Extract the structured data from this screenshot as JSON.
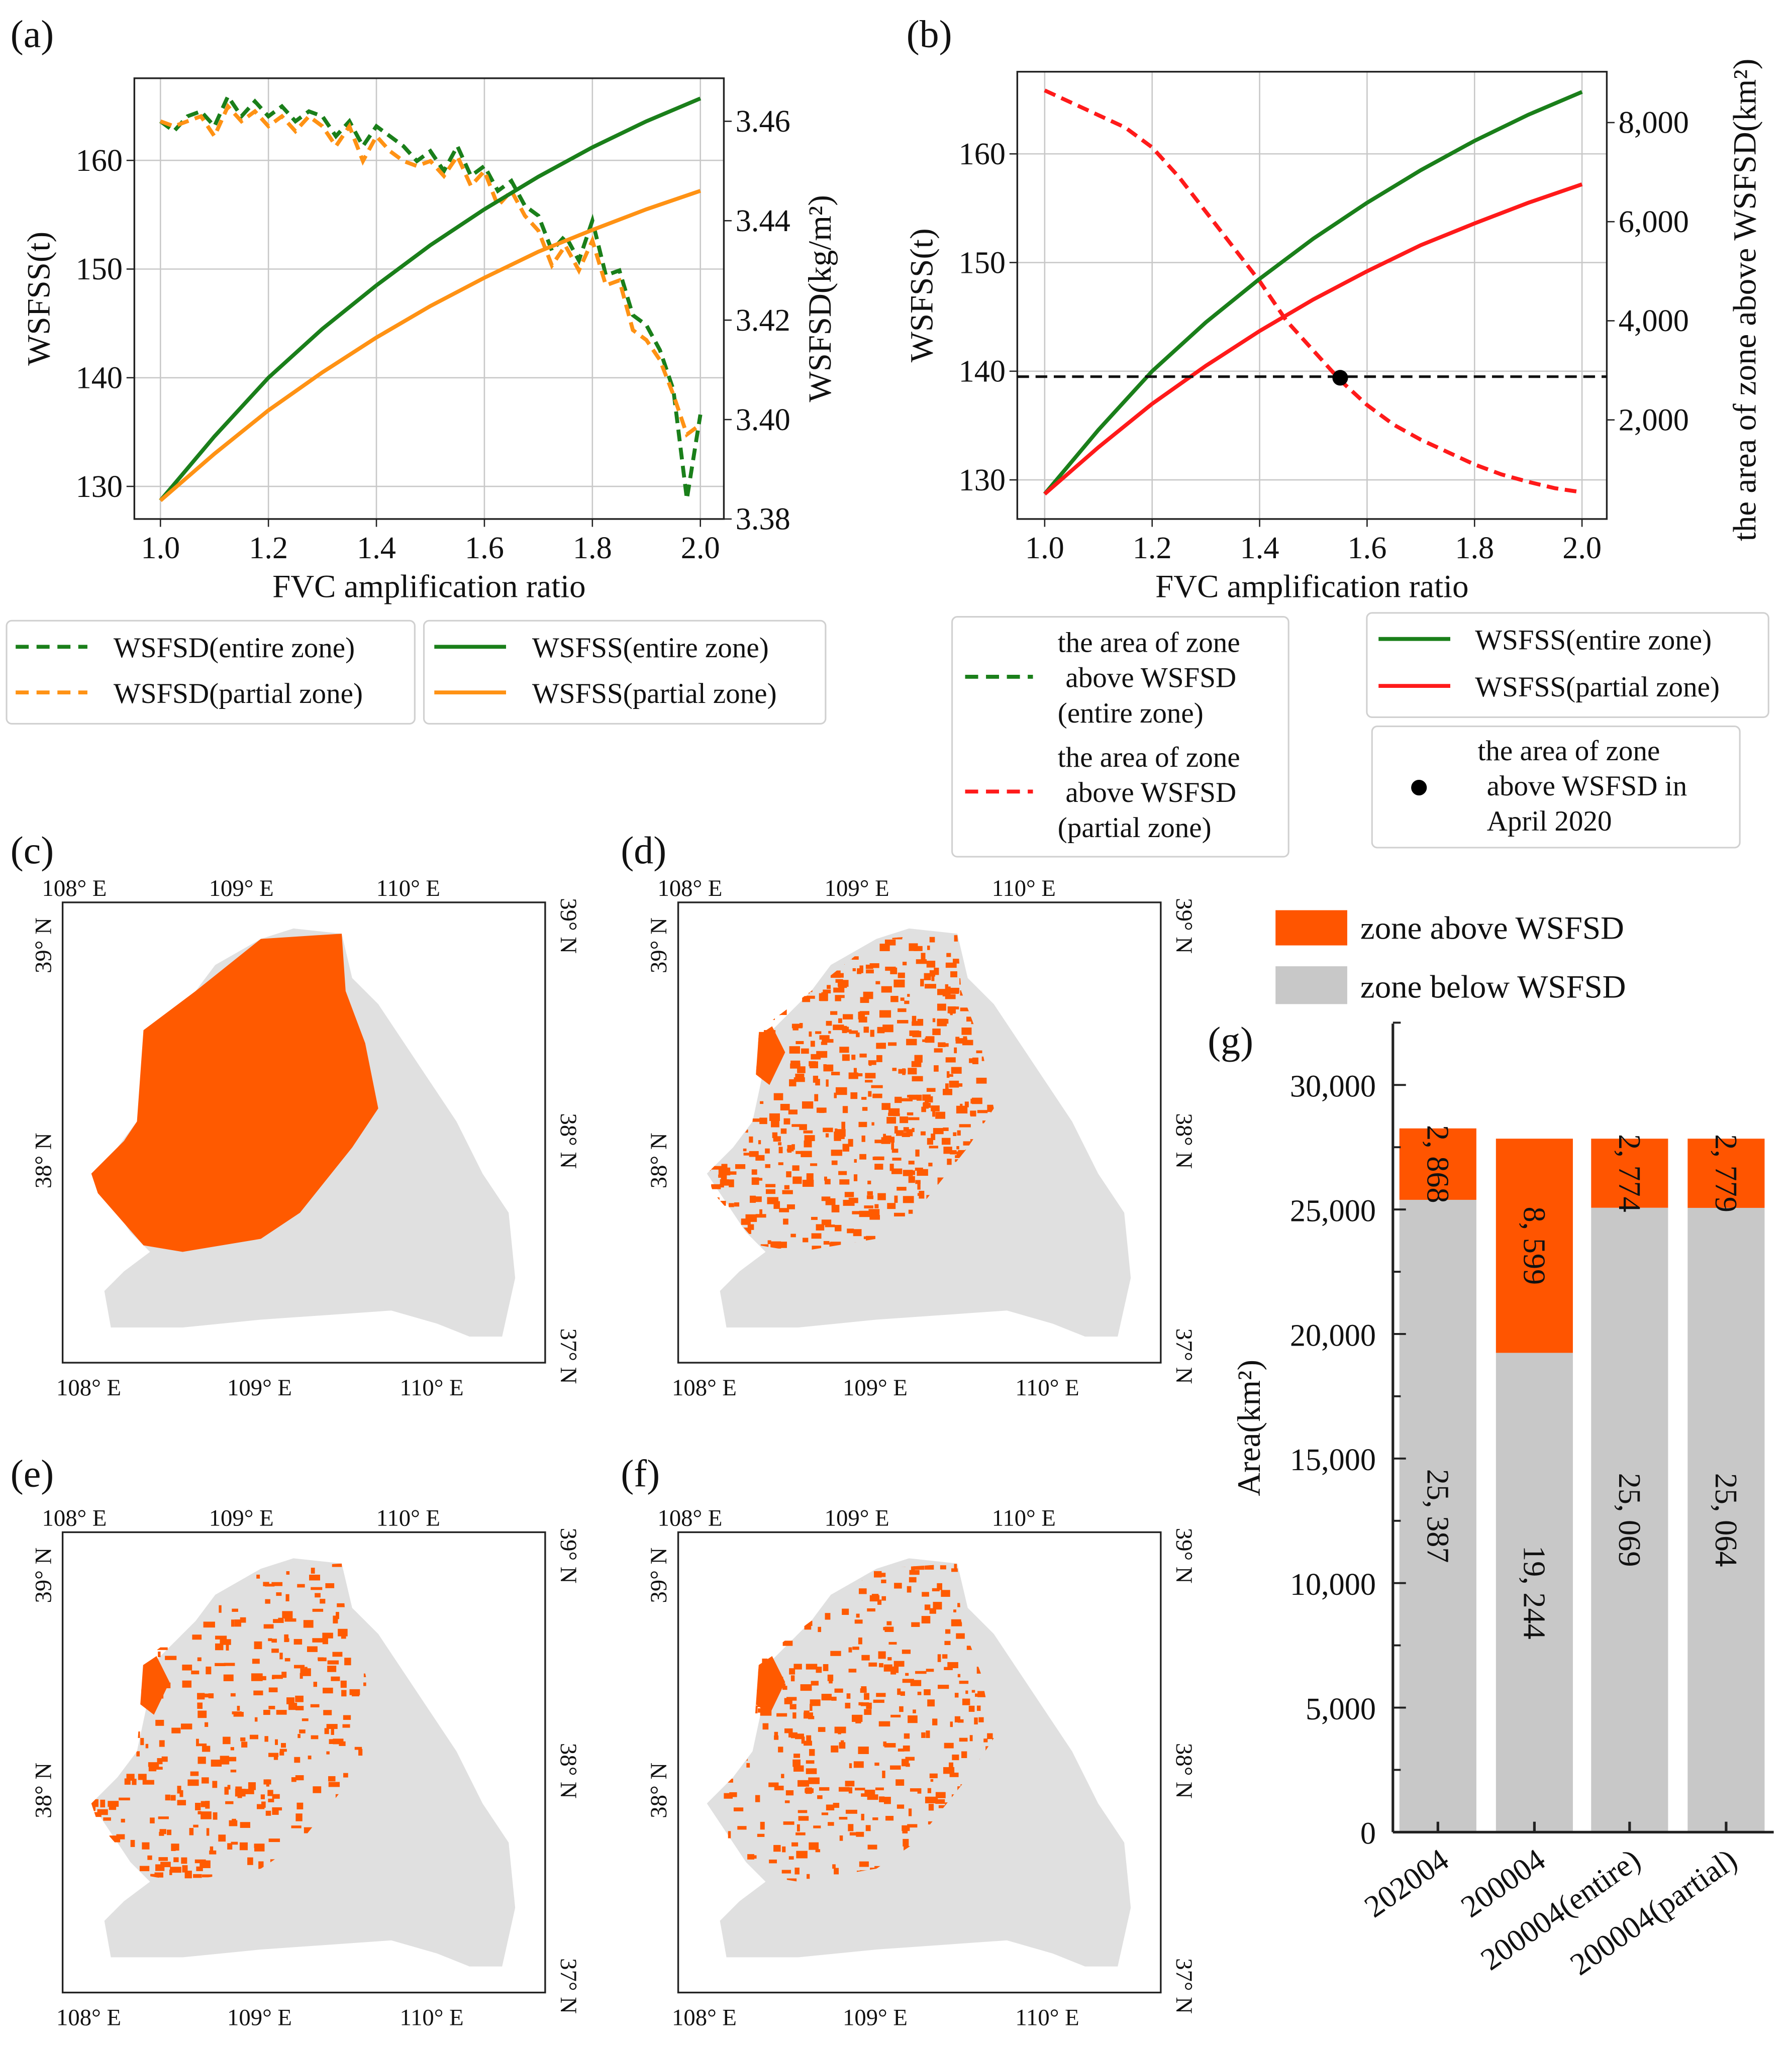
{
  "panel_labels": {
    "a": "(a)",
    "b": "(b)",
    "c": "(c)",
    "d": "(d)",
    "e": "(e)",
    "f": "(f)",
    "g": "(g)"
  },
  "colors": {
    "green": "#1a7f1a",
    "orange": "#ff9214",
    "red": "#ff1a1a",
    "map_fill": "#e0e0e0",
    "map_above": "#ff5a00",
    "bar_above": "#ff5500",
    "bar_below": "#c8c8c8"
  },
  "chart_data": [
    {
      "id": "a",
      "type": "line",
      "xlabel": "FVC amplification ratio",
      "ylabel": "WSFSS(t)",
      "y2label": "WSFSD(kg/m²)",
      "xlim": [
        0.95,
        2.05
      ],
      "ylim": [
        127,
        167
      ],
      "y2lim": [
        3.38,
        3.467
      ],
      "xticks": [
        "1.0",
        "1.2",
        "1.4",
        "1.6",
        "1.8",
        "2.0"
      ],
      "yticks": [
        "130",
        "140",
        "150",
        "160"
      ],
      "y2ticks": [
        "3.38",
        "3.40",
        "3.42",
        "3.44",
        "3.46"
      ],
      "grid": true,
      "series": [
        {
          "name": "WSFSD(entire zone)",
          "axis": "right",
          "style": "dashed",
          "color": "#1a7f1a",
          "x": [
            1.0,
            1.025,
            1.05,
            1.075,
            1.1,
            1.125,
            1.15,
            1.175,
            1.2,
            1.225,
            1.25,
            1.275,
            1.3,
            1.325,
            1.35,
            1.375,
            1.4,
            1.425,
            1.45,
            1.475,
            1.5,
            1.525,
            1.55,
            1.575,
            1.6,
            1.625,
            1.65,
            1.675,
            1.7,
            1.725,
            1.75,
            1.775,
            1.8,
            1.825,
            1.85,
            1.875,
            1.9,
            1.925,
            1.95,
            1.975,
            2.0
          ],
          "y": [
            3.46,
            3.458,
            3.461,
            3.462,
            3.459,
            3.465,
            3.461,
            3.464,
            3.461,
            3.463,
            3.46,
            3.462,
            3.461,
            3.457,
            3.46,
            3.455,
            3.459,
            3.457,
            3.455,
            3.452,
            3.454,
            3.45,
            3.455,
            3.449,
            3.451,
            3.446,
            3.448,
            3.443,
            3.441,
            3.434,
            3.437,
            3.432,
            3.44,
            3.429,
            3.43,
            3.421,
            3.419,
            3.414,
            3.406,
            3.384,
            3.401
          ]
        },
        {
          "name": "WSFSD(partial zone)",
          "axis": "right",
          "style": "dashed",
          "color": "#ff9214",
          "x": [
            1.0,
            1.025,
            1.05,
            1.075,
            1.1,
            1.125,
            1.15,
            1.175,
            1.2,
            1.225,
            1.25,
            1.275,
            1.3,
            1.325,
            1.35,
            1.375,
            1.4,
            1.425,
            1.45,
            1.475,
            1.5,
            1.525,
            1.55,
            1.575,
            1.6,
            1.625,
            1.65,
            1.675,
            1.7,
            1.725,
            1.75,
            1.775,
            1.8,
            1.825,
            1.85,
            1.875,
            1.9,
            1.925,
            1.95,
            1.975,
            2.0
          ],
          "y": [
            3.46,
            3.459,
            3.46,
            3.461,
            3.457,
            3.463,
            3.46,
            3.462,
            3.459,
            3.461,
            3.458,
            3.461,
            3.459,
            3.455,
            3.459,
            3.452,
            3.457,
            3.454,
            3.452,
            3.451,
            3.452,
            3.449,
            3.453,
            3.447,
            3.45,
            3.443,
            3.446,
            3.441,
            3.438,
            3.431,
            3.435,
            3.43,
            3.436,
            3.427,
            3.428,
            3.418,
            3.416,
            3.412,
            3.405,
            3.397,
            3.399
          ]
        },
        {
          "name": "WSFSS(entire zone)",
          "axis": "left",
          "style": "solid",
          "color": "#1a7f1a",
          "x": [
            1.0,
            1.1,
            1.2,
            1.3,
            1.4,
            1.5,
            1.6,
            1.7,
            1.8,
            1.9,
            2.0
          ],
          "y": [
            128.7,
            134.6,
            140.0,
            144.5,
            148.5,
            152.2,
            155.5,
            158.5,
            161.2,
            163.6,
            165.7
          ]
        },
        {
          "name": "WSFSS(partial zone)",
          "axis": "left",
          "style": "solid",
          "color": "#ff9214",
          "x": [
            1.0,
            1.1,
            1.2,
            1.3,
            1.4,
            1.5,
            1.6,
            1.7,
            1.8,
            1.9,
            2.0
          ],
          "y": [
            128.7,
            133.0,
            137.0,
            140.5,
            143.7,
            146.6,
            149.2,
            151.6,
            153.6,
            155.5,
            157.2
          ]
        }
      ]
    },
    {
      "id": "b",
      "type": "line",
      "xlabel": "FVC amplification ratio",
      "ylabel": "WSFSS(t)",
      "y2label": "the area of zone above WSFSD(km²)",
      "xlim": [
        0.95,
        2.05
      ],
      "ylim": [
        126.5,
        167.5
      ],
      "y2lim": [
        0,
        9000
      ],
      "xticks": [
        "1.0",
        "1.2",
        "1.4",
        "1.6",
        "1.8",
        "2.0"
      ],
      "yticks": [
        "130",
        "140",
        "150",
        "160"
      ],
      "y2ticks": [
        "2,000",
        "4,000",
        "6,000",
        "8,000"
      ],
      "grid": true,
      "series": [
        {
          "name": "the area of zone above WSFSD (entire zone)",
          "axis": "right",
          "style": "dashed",
          "color": "#1a7f1a",
          "x": [],
          "y": []
        },
        {
          "name": "the area of zone above WSFSD (partial zone)",
          "axis": "right",
          "style": "dashed",
          "color": "#ff1a1a",
          "x": [
            1.0,
            1.05,
            1.1,
            1.15,
            1.2,
            1.25,
            1.3,
            1.35,
            1.4,
            1.45,
            1.5,
            1.55,
            1.6,
            1.65,
            1.7,
            1.75,
            1.8,
            1.85,
            1.9,
            1.95,
            2.0
          ],
          "y": [
            8650,
            8400,
            8150,
            7900,
            7500,
            6900,
            6200,
            5500,
            4800,
            4000,
            3400,
            2800,
            2300,
            1900,
            1600,
            1350,
            1100,
            900,
            750,
            620,
            540
          ]
        },
        {
          "name": "WSFSS(entire zone)",
          "axis": "left",
          "style": "solid",
          "color": "#1a7f1a",
          "x": [
            1.0,
            1.1,
            1.2,
            1.3,
            1.4,
            1.5,
            1.6,
            1.7,
            1.8,
            1.9,
            2.0
          ],
          "y": [
            128.7,
            134.6,
            140.0,
            144.5,
            148.5,
            152.2,
            155.5,
            158.5,
            161.2,
            163.6,
            165.7
          ]
        },
        {
          "name": "WSFSS(partial zone)",
          "axis": "left",
          "style": "solid",
          "color": "#ff1a1a",
          "x": [
            1.0,
            1.1,
            1.2,
            1.3,
            1.4,
            1.5,
            1.6,
            1.7,
            1.8,
            1.9,
            2.0
          ],
          "y": [
            128.7,
            133.0,
            137.0,
            140.5,
            143.7,
            146.6,
            149.2,
            151.6,
            153.6,
            155.5,
            157.2
          ]
        }
      ],
      "reference_line": {
        "axis": "left",
        "y": 139.5,
        "style": "dashed",
        "color": "#111111"
      },
      "point": {
        "name": "the area of zone above WSFSD in April 2020",
        "x": 1.55,
        "y": 2850,
        "axis": "right"
      },
      "legend_texts": {
        "entire_lines": [
          "the area of zone",
          "above WSFSD",
          "(entire zone)"
        ],
        "partial_lines": [
          "the area of zone",
          "above WSFSD",
          "(partial zone)"
        ],
        "point_lines": [
          "the area of zone",
          "above WSFSD in",
          "April 2020"
        ]
      }
    },
    {
      "id": "g",
      "type": "bar",
      "stacked": true,
      "ylabel": "Area(km²)",
      "ylim": [
        0,
        32500
      ],
      "yticks": [
        "0",
        "5,000",
        "10,000",
        "15,000",
        "20,000",
        "25,000",
        "30,000"
      ],
      "categories": [
        "202004",
        "200004",
        "200004(entire)",
        "200004(partial)"
      ],
      "series": [
        {
          "name": "zone below WSFSD",
          "color": "#c8c8c8",
          "values": [
            25387,
            19244,
            25069,
            25064
          ],
          "labels": [
            "25, 387",
            "19, 244",
            "25, 069",
            "25, 064"
          ]
        },
        {
          "name": "zone above WSFSD",
          "color": "#ff5500",
          "values": [
            2868,
            8599,
            2774,
            2779
          ],
          "labels": [
            "2, 868",
            "8, 599",
            "2, 774",
            "2, 779"
          ]
        }
      ],
      "legend": [
        "zone above WSFSD",
        "zone below WSFSD"
      ]
    }
  ],
  "maps": {
    "lon_labels": [
      "108° E",
      "109° E",
      "110° E"
    ],
    "lat_left": [
      "39° N",
      "38° N"
    ],
    "lat_right": [
      "39° N",
      "38° N",
      "37° N"
    ]
  }
}
